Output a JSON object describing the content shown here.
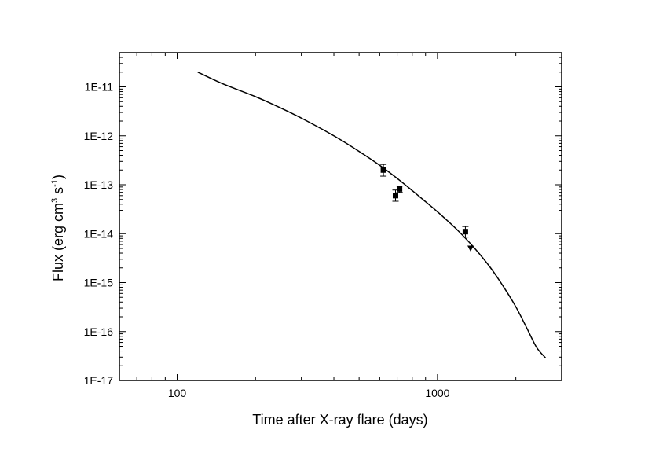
{
  "chart_data": {
    "type": "scatter",
    "xlabel": "Time after X-ray flare (days)",
    "ylabel": {
      "prefix": "Flux (erg cm",
      "sup1": "3",
      "mid": " s",
      "sup2": "-1",
      "suffix": ")"
    },
    "x_scale": "log",
    "y_scale": "log",
    "xlim": [
      60,
      3000
    ],
    "ylim": [
      1e-17,
      5e-11
    ],
    "x_ticks": [
      {
        "value": 100,
        "label": "100"
      },
      {
        "value": 1000,
        "label": "1000"
      }
    ],
    "y_ticks": [
      {
        "value": 1e-17,
        "label": "1E-17"
      },
      {
        "value": 1e-16,
        "label": "1E-16"
      },
      {
        "value": 1e-15,
        "label": "1E-15"
      },
      {
        "value": 1e-14,
        "label": "1E-14"
      },
      {
        "value": 1e-13,
        "label": "1E-13"
      },
      {
        "value": 1e-12,
        "label": "1E-12"
      },
      {
        "value": 1e-11,
        "label": "1E-11"
      }
    ],
    "grid": false,
    "series": [
      {
        "type": "scatter",
        "marker": "square",
        "points": [
          {
            "x": 620,
            "y": 2e-13,
            "y_low": 1.5e-13,
            "y_high": 2.6e-13
          },
          {
            "x": 690,
            "y": 6e-14,
            "y_low": 4.6e-14,
            "y_high": 7.8e-14
          },
          {
            "x": 715,
            "y": 8.2e-14,
            "y_low": 7e-14,
            "y_high": 9.4e-14
          },
          {
            "x": 1280,
            "y": 1.1e-14,
            "y_low": 8.5e-15,
            "y_high": 1.4e-14
          }
        ]
      },
      {
        "type": "scatter",
        "marker": "triangle-down",
        "points": [
          {
            "x": 1340,
            "y": 5e-15
          }
        ]
      },
      {
        "type": "line",
        "points": [
          {
            "x": 120,
            "y": 2e-11
          },
          {
            "x": 150,
            "y": 1.15e-11
          },
          {
            "x": 200,
            "y": 6.3e-12
          },
          {
            "x": 250,
            "y": 3.7e-12
          },
          {
            "x": 300,
            "y": 2.3e-12
          },
          {
            "x": 400,
            "y": 1e-12
          },
          {
            "x": 500,
            "y": 4.8e-13
          },
          {
            "x": 600,
            "y": 2.5e-13
          },
          {
            "x": 700,
            "y": 1.35e-13
          },
          {
            "x": 800,
            "y": 7.6e-14
          },
          {
            "x": 900,
            "y": 4.5e-14
          },
          {
            "x": 1000,
            "y": 2.8e-14
          },
          {
            "x": 1200,
            "y": 1.15e-14
          },
          {
            "x": 1400,
            "y": 4.8e-15
          },
          {
            "x": 1600,
            "y": 2e-15
          },
          {
            "x": 1800,
            "y": 8e-16
          },
          {
            "x": 2000,
            "y": 3.2e-16
          },
          {
            "x": 2200,
            "y": 1.2e-16
          },
          {
            "x": 2400,
            "y": 4.8e-17
          },
          {
            "x": 2600,
            "y": 2.9e-17
          }
        ]
      }
    ]
  }
}
